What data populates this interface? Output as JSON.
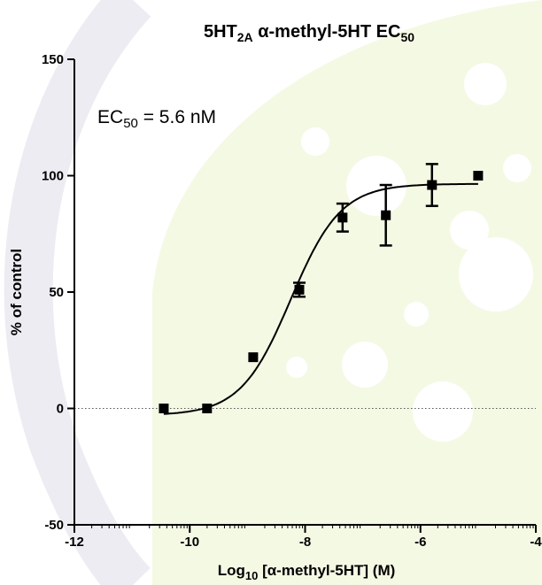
{
  "chart_data": {
    "type": "scatter",
    "title": {
      "prefix": "5HT",
      "prefix_sub": "2A",
      "main": " α-methyl-5HT EC",
      "main_sub": "50"
    },
    "xlabel": {
      "prefix": "Log",
      "sub": "10",
      "rest": " [α-methyl-5HT] (M)"
    },
    "ylabel": "% of control",
    "xlim": [
      -12,
      -4
    ],
    "ylim": [
      -50,
      150
    ],
    "xticks": [
      -12,
      -10,
      -8,
      -6,
      -4
    ],
    "yticks": [
      -50,
      0,
      50,
      100,
      150
    ],
    "annotation": {
      "prefix": "EC",
      "sub": "50",
      "rest": " = 5.6 nM"
    },
    "series": [
      {
        "points": [
          {
            "x": -10.45,
            "y": 0
          },
          {
            "x": -9.7,
            "y": 0
          },
          {
            "x": -8.9,
            "y": 22
          },
          {
            "x": -8.1,
            "y": 51,
            "err": 3
          },
          {
            "x": -7.35,
            "y": 82,
            "err": 6
          },
          {
            "x": -6.6,
            "y": 83,
            "err": 13
          },
          {
            "x": -5.8,
            "y": 96,
            "err": 9
          },
          {
            "x": -5.0,
            "y": 100
          }
        ]
      }
    ],
    "fit": {
      "type": "sigmoid",
      "bottom": -3,
      "top": 96.5,
      "log_ec50": -8.25,
      "hill": 1.0
    },
    "baseline": {
      "y": 0,
      "style": "dotted"
    },
    "colors": {
      "marker": "#000000",
      "background_shape": "#f4f9e4",
      "arc": "#eaeaf0"
    }
  }
}
